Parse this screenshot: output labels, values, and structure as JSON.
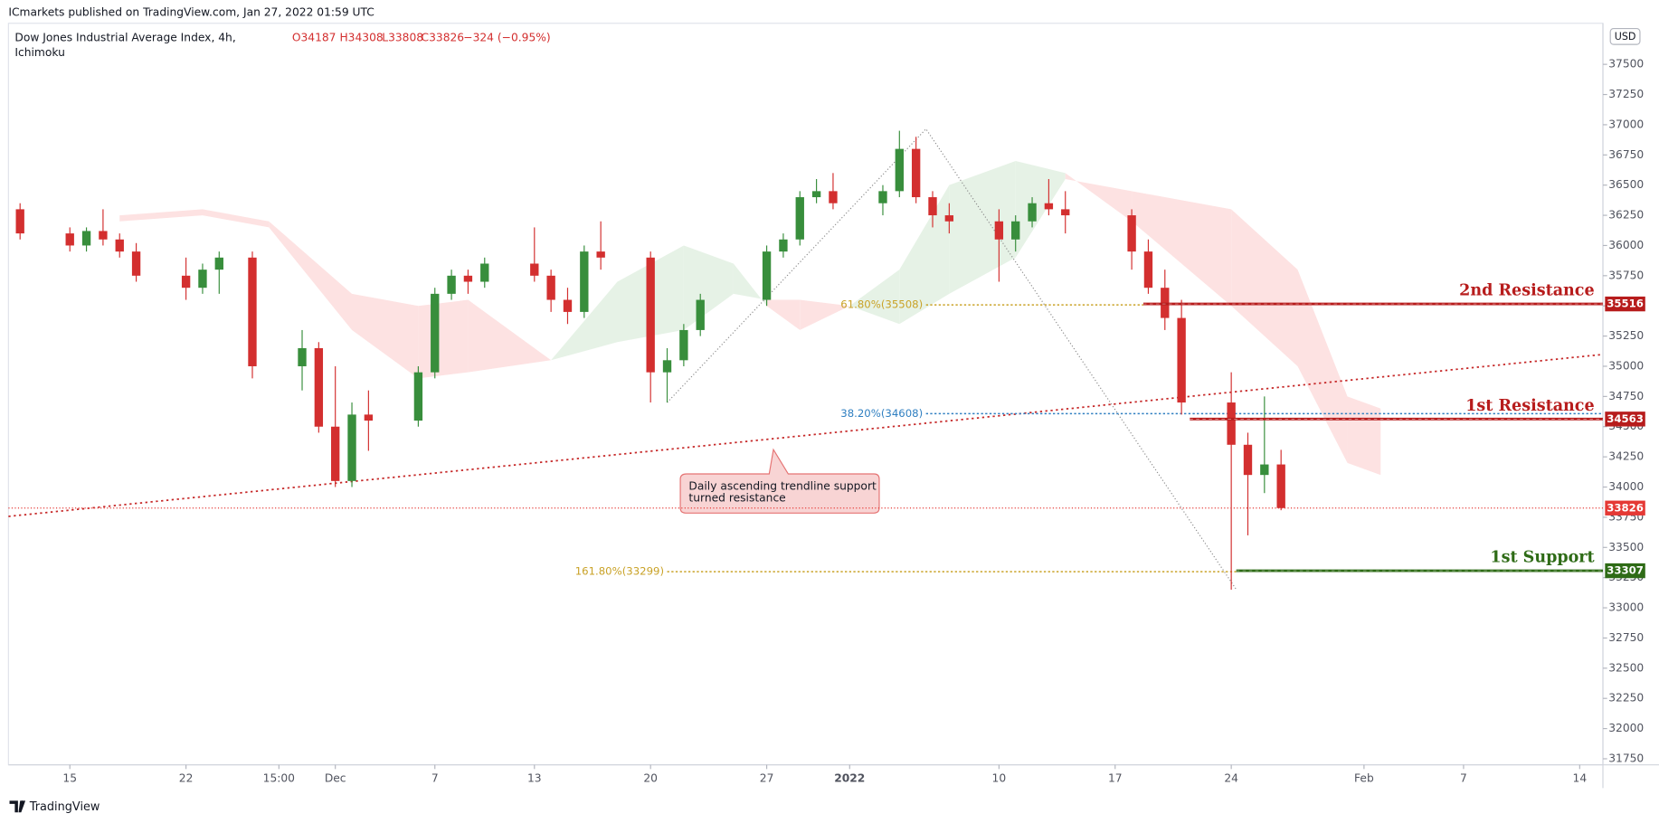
{
  "header": {
    "publisher": "ICmarkets published on TradingView.com, Jan 27, 2022 01:59 UTC",
    "symbol": "Dow Jones Industrial Average Index, 4h,",
    "indicator": "Ichimoku",
    "ohlc": [
      "O34187",
      "H34308",
      "L33808",
      "C33826",
      "−324 (−0.95%)"
    ],
    "currency": "USD"
  },
  "footer": {
    "brand": "TradingView"
  },
  "chart_data": {
    "type": "candlestick",
    "x": [
      -3,
      0,
      1,
      2,
      3,
      4,
      7,
      8,
      9,
      11,
      14,
      15,
      16,
      17,
      18,
      21,
      22,
      23,
      24,
      25,
      28,
      29,
      30,
      31,
      32,
      35,
      36,
      37,
      38,
      42,
      43,
      44,
      45,
      46,
      49,
      50,
      51,
      52,
      53,
      56,
      57,
      58,
      59,
      60,
      64,
      65,
      66,
      67,
      70,
      71,
      72,
      73
    ],
    "open": [
      36300,
      36100,
      36000,
      36120,
      36050,
      35950,
      35750,
      35650,
      35800,
      35900,
      35000,
      35150,
      34500,
      34050,
      34600,
      34550,
      34950,
      35600,
      35750,
      35700,
      35850,
      35750,
      35550,
      35450,
      35950,
      35900,
      34950,
      35050,
      35300,
      35550,
      35950,
      36050,
      36400,
      36450,
      36350,
      36450,
      36800,
      36400,
      36250,
      36200,
      36050,
      36200,
      36350,
      36300,
      36250,
      35950,
      35650,
      35400,
      34700,
      34350,
      34100,
      34187
    ],
    "high": [
      36350,
      36150,
      36150,
      36300,
      36100,
      36020,
      35900,
      35850,
      35950,
      35950,
      35300,
      35200,
      35000,
      34700,
      34800,
      35000,
      35650,
      35800,
      35800,
      35900,
      36150,
      35800,
      35650,
      36000,
      36200,
      35950,
      35150,
      35350,
      35600,
      36000,
      36100,
      36450,
      36550,
      36600,
      36500,
      36950,
      36900,
      36450,
      36350,
      36300,
      36250,
      36400,
      36550,
      36450,
      36300,
      36050,
      35800,
      35550,
      34950,
      34450,
      34750,
      34308
    ],
    "low": [
      36050,
      35950,
      35950,
      36000,
      35900,
      35700,
      35550,
      35600,
      35600,
      34900,
      34800,
      34450,
      34000,
      34000,
      34300,
      34500,
      34900,
      35550,
      35600,
      35650,
      35700,
      35450,
      35350,
      35400,
      35800,
      34700,
      34700,
      35000,
      35250,
      35500,
      35900,
      36000,
      36350,
      36300,
      36250,
      36400,
      36350,
      36150,
      36100,
      35700,
      35950,
      36150,
      36250,
      36100,
      35800,
      35600,
      35300,
      34600,
      33150,
      33600,
      33950,
      33808
    ],
    "close": [
      36100,
      36000,
      36120,
      36050,
      35950,
      35750,
      35650,
      35800,
      35900,
      35000,
      35150,
      34500,
      34050,
      34600,
      34550,
      34950,
      35600,
      35750,
      35700,
      35850,
      35750,
      35550,
      35450,
      35950,
      35900,
      34950,
      35050,
      35300,
      35550,
      35950,
      36050,
      36400,
      36450,
      36350,
      36450,
      36800,
      36400,
      36250,
      36200,
      36050,
      36200,
      36350,
      36300,
      36250,
      35950,
      35650,
      35400,
      34700,
      34350,
      34100,
      34187,
      33826
    ],
    "up_color": "#388e3c",
    "down_color": "#d32f2f",
    "xlim": [
      -3.7,
      92.4
    ],
    "xticks": [
      {
        "value": 0,
        "label": "15"
      },
      {
        "value": 7,
        "label": "22"
      },
      {
        "value": 12.6,
        "label": "15:00"
      },
      {
        "value": 16,
        "label": "Dec"
      },
      {
        "value": 22,
        "label": "7"
      },
      {
        "value": 28,
        "label": "13"
      },
      {
        "value": 35,
        "label": "20"
      },
      {
        "value": 42,
        "label": "27"
      },
      {
        "value": 47,
        "label": "2022"
      },
      {
        "value": 56,
        "label": "10"
      },
      {
        "value": 63,
        "label": "17"
      },
      {
        "value": 70,
        "label": "24"
      },
      {
        "value": 78,
        "label": "Feb"
      },
      {
        "value": 84,
        "label": "7"
      },
      {
        "value": 91,
        "label": "14"
      }
    ],
    "ylim": [
      31700,
      37840
    ],
    "yticks": [
      31750,
      32000,
      32250,
      32500,
      32750,
      33000,
      33250,
      33500,
      33750,
      34000,
      34250,
      34500,
      34750,
      35000,
      35250,
      35500,
      35750,
      36000,
      36250,
      36500,
      36750,
      37000,
      37250,
      37500
    ],
    "grid": false,
    "ichimoku": {
      "x": [
        3,
        8,
        12,
        17,
        21,
        24,
        29,
        33,
        37,
        40,
        42,
        44,
        47,
        50,
        53,
        57,
        60,
        64,
        70,
        74,
        77,
        79
      ],
      "span_a": [
        36200,
        36250,
        36150,
        35300,
        34900,
        34950,
        35050,
        35700,
        36000,
        35850,
        35500,
        35300,
        35500,
        35800,
        36500,
        36700,
        36600,
        36200,
        35500,
        35000,
        34200,
        34100
      ],
      "span_b": [
        36250,
        36300,
        36200,
        35600,
        35500,
        35550,
        35050,
        35200,
        35300,
        35600,
        35550,
        35550,
        35500,
        35350,
        35600,
        35900,
        36550,
        36450,
        36300,
        35800,
        34750,
        34650
      ],
      "bull_color": "#e6f2e6",
      "bear_color": "#fde2e2"
    },
    "trendline": {
      "x": [
        -3.7,
        92.4
      ],
      "y": [
        33757,
        35098
      ],
      "color": "#c62828"
    },
    "fib_path": {
      "x": [
        36,
        51.6,
        70.3
      ],
      "y": [
        34700,
        36965,
        33152
      ],
      "color": "#8a8a8a"
    },
    "fib_levels": [
      {
        "label": "61.80%(35508)",
        "value": 35508,
        "x_start": 51.6,
        "x_end": 64.7,
        "color": "#c9a227"
      },
      {
        "label": "38.20%(34608)",
        "value": 34608,
        "x_start": 51.6,
        "x_end": 92.4,
        "color": "#2f7fc1"
      },
      {
        "label": "161.80%(33299)",
        "value": 33299,
        "x_start": 36,
        "x_end": 70.3,
        "color": "#c9a227"
      }
    ],
    "levels": [
      {
        "label": "2nd Resistance",
        "value": 35516,
        "x_start": 64.7,
        "color": "#b71c1c"
      },
      {
        "label": "1st Resistance",
        "value": 34563,
        "x_start": 67.5,
        "color": "#b71c1c"
      },
      {
        "label": "1st Support",
        "value": 33307,
        "x_start": 70.3,
        "color": "#2e6b16"
      }
    ],
    "price_line": {
      "value": 33826,
      "color": "#e53935"
    },
    "annotation": {
      "lines": [
        "Daily ascending trendline support",
        "turned resistance"
      ]
    }
  }
}
